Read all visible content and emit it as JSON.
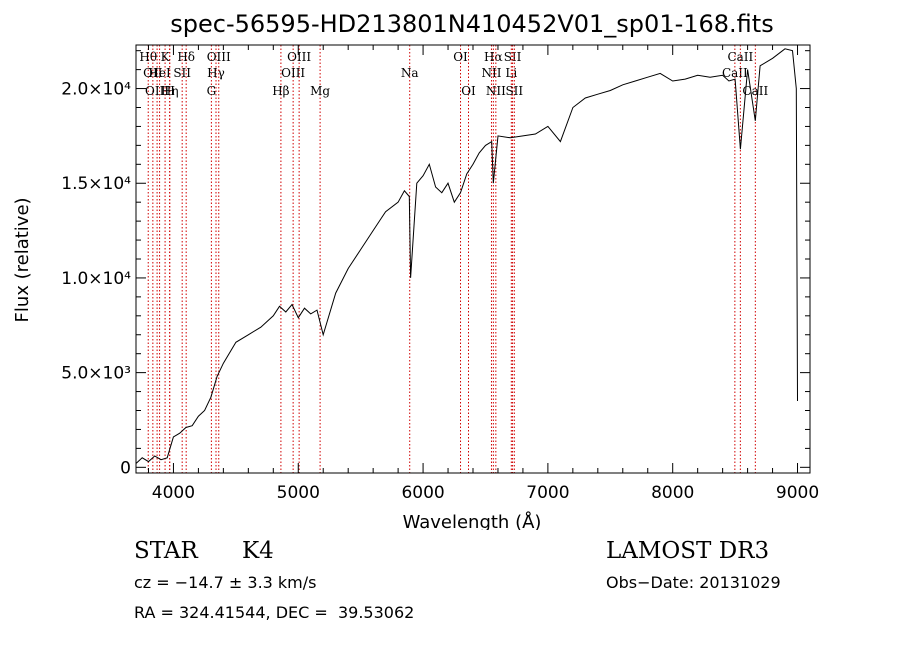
{
  "chart_data": {
    "type": "line",
    "title": "spec-56595-HD213801N410452V01_sp01-168.fits",
    "xlabel": "Wavelength (Å)",
    "ylabel": "Flux (relative)",
    "xlim": [
      3700,
      9100
    ],
    "ylim": [
      -300,
      22300
    ],
    "x_ticks": [
      4000,
      5000,
      6000,
      7000,
      8000,
      9000
    ],
    "x_tick_labels": [
      "4000",
      "5000",
      "6000",
      "7000",
      "8000",
      "9000"
    ],
    "y_ticks": [
      0,
      5000,
      10000,
      15000,
      20000
    ],
    "y_tick_labels": [
      "0",
      "5.0×10³",
      "1.0×10⁴",
      "1.5×10⁴",
      "2.0×10⁴"
    ],
    "series": [
      {
        "name": "spectrum",
        "x": [
          3700,
          3750,
          3800,
          3850,
          3900,
          3950,
          4000,
          4050,
          4100,
          4150,
          4200,
          4250,
          4300,
          4350,
          4400,
          4500,
          4600,
          4700,
          4800,
          4850,
          4900,
          4950,
          5000,
          5050,
          5100,
          5150,
          5200,
          5300,
          5400,
          5500,
          5600,
          5700,
          5800,
          5850,
          5890,
          5900,
          5950,
          6000,
          6050,
          6100,
          6150,
          6200,
          6250,
          6300,
          6350,
          6400,
          6450,
          6500,
          6550,
          6563,
          6600,
          6700,
          6800,
          6900,
          7000,
          7100,
          7200,
          7300,
          7400,
          7500,
          7600,
          7700,
          7800,
          7900,
          8000,
          8100,
          8200,
          8300,
          8400,
          8450,
          8500,
          8542,
          8600,
          8662,
          8700,
          8800,
          8900,
          8960,
          8990,
          9000
        ],
        "y": [
          200,
          500,
          300,
          600,
          400,
          500,
          1600,
          1800,
          2100,
          2200,
          2700,
          3000,
          3700,
          4800,
          5500,
          6600,
          7000,
          7400,
          8000,
          8500,
          8200,
          8600,
          7900,
          8400,
          8100,
          8300,
          7000,
          9200,
          10500,
          11500,
          12500,
          13500,
          14000,
          14600,
          14300,
          10000,
          15000,
          15400,
          16000,
          14800,
          14500,
          15000,
          14000,
          14500,
          15500,
          16000,
          16600,
          17000,
          17200,
          15000,
          17500,
          17400,
          17500,
          17600,
          18000,
          17200,
          19000,
          19500,
          19700,
          19900,
          20200,
          20400,
          20600,
          20800,
          20400,
          20500,
          20700,
          20600,
          20700,
          20400,
          20500,
          16800,
          21000,
          18300,
          21200,
          21600,
          22100,
          22000,
          20000,
          3500
        ]
      }
    ],
    "line_marks": [
      {
        "wl": 3798,
        "row": 1,
        "label": "Hθ"
      },
      {
        "wl": 3835,
        "row": 2,
        "label": "OII"
      },
      {
        "wl": 3869,
        "row": 3,
        "label": "OIII"
      },
      {
        "wl": 3889,
        "row": 2,
        "label": "HeI"
      },
      {
        "wl": 3933,
        "row": 1,
        "label": "K"
      },
      {
        "wl": 3970,
        "row": 3,
        "label": "H"
      },
      {
        "wl": 3970,
        "row": 3,
        "label": "Hη"
      },
      {
        "wl": 4070,
        "row": 2,
        "label": "SII"
      },
      {
        "wl": 4102,
        "row": 1,
        "label": "Hδ"
      },
      {
        "wl": 4304,
        "row": 3,
        "label": "G"
      },
      {
        "wl": 4341,
        "row": 2,
        "label": "Hγ"
      },
      {
        "wl": 4363,
        "row": 1,
        "label": "OIII"
      },
      {
        "wl": 4861,
        "row": 3,
        "label": "Hβ"
      },
      {
        "wl": 4959,
        "row": 2,
        "label": "OIII"
      },
      {
        "wl": 5007,
        "row": 1,
        "label": "OIII"
      },
      {
        "wl": 5175,
        "row": 3,
        "label": "Mg"
      },
      {
        "wl": 5893,
        "row": 2,
        "label": "Na"
      },
      {
        "wl": 6300,
        "row": 1,
        "label": "OI"
      },
      {
        "wl": 6364,
        "row": 3,
        "label": "OI"
      },
      {
        "wl": 6548,
        "row": 2,
        "label": "NII"
      },
      {
        "wl": 6563,
        "row": 1,
        "label": "Hα"
      },
      {
        "wl": 6583,
        "row": 3,
        "label": "NII"
      },
      {
        "wl": 6707,
        "row": 2,
        "label": "Li"
      },
      {
        "wl": 6717,
        "row": 1,
        "label": "SII"
      },
      {
        "wl": 6731,
        "row": 3,
        "label": "SII"
      },
      {
        "wl": 8498,
        "row": 2,
        "label": "CaII"
      },
      {
        "wl": 8542,
        "row": 1,
        "label": "CaII"
      },
      {
        "wl": 8662,
        "row": 3,
        "label": "CaII"
      }
    ]
  },
  "info": {
    "class_label": "STAR",
    "subclass": "K4",
    "survey": "LAMOST DR3",
    "redshift": "cz = −14.7 ± 3.3 km/s",
    "obs_date": "Obs−Date: 20131029",
    "coords": "RA = 324.41544, DEC =  39.53062"
  },
  "colors": {
    "axes": "#000000",
    "spectrum": "#000000",
    "line_marker": "#d00000"
  }
}
